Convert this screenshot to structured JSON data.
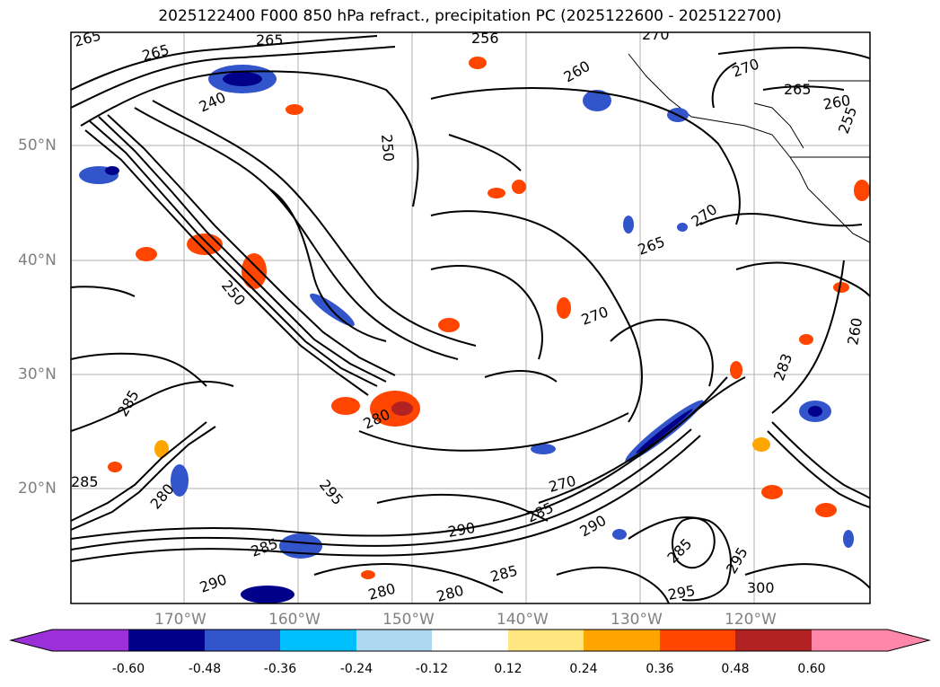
{
  "title": "2025122400 F000 850 hPa refract., precipitation PC (2025122600 - 2025122700)",
  "latitude_labels": [
    "50°N",
    "40°N",
    "30°N",
    "20°N"
  ],
  "longitude_labels": [
    "170°W",
    "160°W",
    "150°W",
    "140°W",
    "130°W",
    "120°W"
  ],
  "contour_labels": [
    "265",
    "265",
    "265",
    "270",
    "270",
    "265",
    "260",
    "255",
    "250",
    "240",
    "256",
    "260",
    "270",
    "265",
    "270",
    "283",
    "285",
    "280",
    "285",
    "270",
    "290",
    "285",
    "295",
    "280",
    "290",
    "285",
    "280",
    "285",
    "300",
    "295",
    "260",
    "250",
    "285",
    "280",
    "295",
    "290"
  ],
  "colorbar": {
    "tick_labels": [
      "-0.60",
      "-0.48",
      "-0.36",
      "-0.24",
      "-0.12",
      "0.12",
      "0.24",
      "0.36",
      "0.48",
      "0.60"
    ],
    "colors": [
      "#9b30d9",
      "#00008b",
      "#3355cc",
      "#00bfff",
      "#add8f0",
      "#ffffff",
      "#ffe680",
      "#ffa500",
      "#ff4500",
      "#b22222",
      "#ff88aa"
    ]
  }
}
